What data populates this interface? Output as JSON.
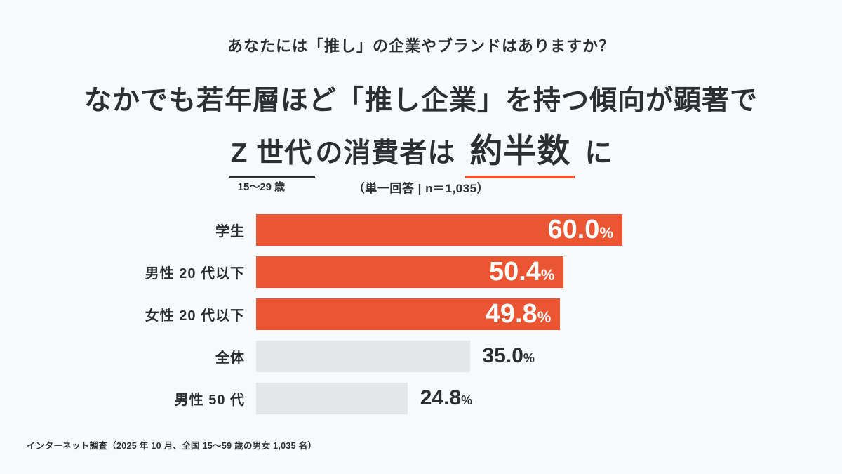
{
  "page": {
    "background": "#F8F9FA",
    "accent_color": "#EB5532",
    "muted_bar_color": "#E4E7E9",
    "text_color": "#2B2F33"
  },
  "question": "あなたには「推し」の企業やブランドはありますか？",
  "headline": {
    "line1": "なかでも若年層ほど「推し企業」を持つ傾向が顕著で",
    "line2_underlined": "Z 世代",
    "line2_underline_note": "15〜29 歳",
    "line2_mid": "の消費者は",
    "line2_emphasis": "約半数",
    "line2_suffix": "に"
  },
  "caption": "（単一回答 | n＝1,035）",
  "chart_data": {
    "type": "bar",
    "orientation": "horizontal",
    "unit": "%",
    "title": "あなたには「推し」の企業やブランドはありますか？",
    "categories": [
      "学生",
      "男性 20 代以下",
      "女性 20 代以下",
      "全体",
      "男性 50 代"
    ],
    "values": [
      60.0,
      50.4,
      49.8,
      35.0,
      24.8
    ],
    "value_labels": [
      "60.0",
      "50.4",
      "49.8",
      "35.0",
      "24.8"
    ],
    "highlighted": [
      true,
      true,
      true,
      false,
      false
    ],
    "xlim": [
      0,
      100
    ],
    "grid": false,
    "legend": false,
    "value_label_position": {
      "highlighted": "inside-right",
      "muted": "outside-right"
    }
  },
  "footnote": "インターネット調査（2025 年 10 月、全国 15〜59 歳の男女 1,035 名）"
}
